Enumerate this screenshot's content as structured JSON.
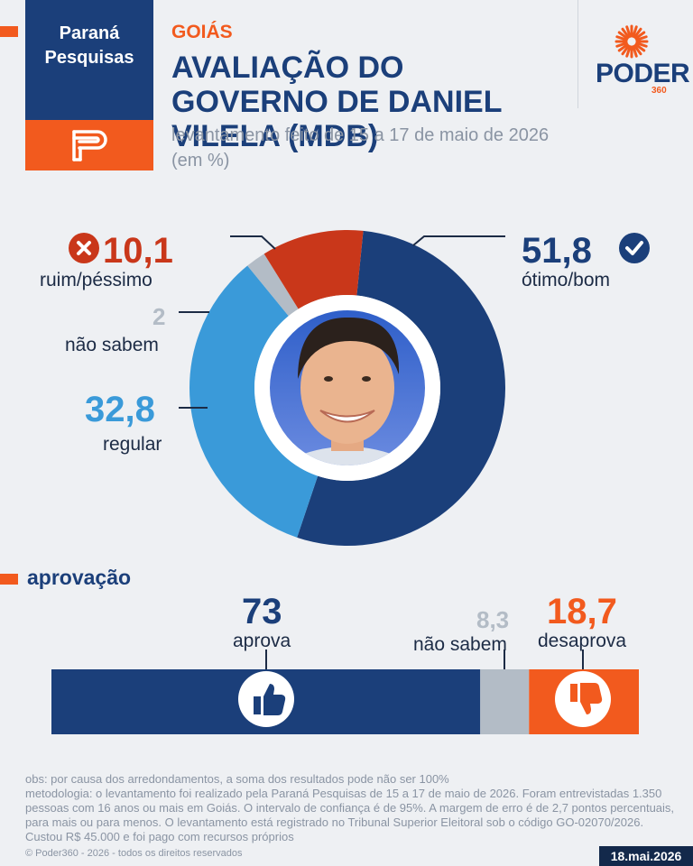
{
  "header": {
    "source_name": "Paraná Pesquisas",
    "region": "GOIÁS",
    "title": "AVALIAÇÃO DO GOVERNO DE DANIEL VILELA (MDB)",
    "subtitle": "levantamento feito de 15 a 17 de maio de 2026 (em %)",
    "publisher": "PODER",
    "publisher_sub": "360"
  },
  "chart_data": [
    {
      "type": "pie",
      "title": "",
      "slices": [
        {
          "label": "ótimo/bom",
          "value": 51.8,
          "display": "51,8",
          "color": "#1b3f7a"
        },
        {
          "label": "regular",
          "value": 32.8,
          "display": "32,8",
          "color": "#3a9ad9"
        },
        {
          "label": "não sabem",
          "value": 2,
          "display": "2",
          "color": "#b3bcc6"
        },
        {
          "label": "ruim/péssimo",
          "value": 10.1,
          "display": "10,1",
          "color": "#c9371a"
        }
      ]
    },
    {
      "type": "bar",
      "title": "aprovação",
      "segments": [
        {
          "label": "aprova",
          "value": 73,
          "display": "73",
          "color": "#1b3f7a"
        },
        {
          "label": "não sabem",
          "value": 8.3,
          "display": "8,3",
          "color": "#b3bcc6"
        },
        {
          "label": "desaprova",
          "value": 18.7,
          "display": "18,7",
          "color": "#f25a1e"
        }
      ]
    }
  ],
  "icons": {
    "check": "check-circle-icon",
    "cross": "cross-circle-icon",
    "thumbs_up": "thumbs-up-icon",
    "thumbs_down": "thumbs-down-icon"
  },
  "footer": {
    "obs": "obs: por causa dos arredondamentos, a soma dos resultados pode não ser 100%",
    "method": "metodologia: o levantamento foi realizado pela Paraná Pesquisas de 15 a 17 de maio de 2026. Foram entrevistadas 1.350 pessoas com 16 anos ou mais em Goiás. O intervalo de confiança é de 95%. A margem de erro é de 2,7 pontos percentuais, para mais ou para menos. O levantamento está registrado no Tribunal Superior Eleitoral sob o código GO-02070/2026. Custou R$ 45.000 e foi pago com recursos próprios",
    "copyright": "© Poder360 - 2026 - todos os direitos reservados",
    "date": "18.mai.2026"
  }
}
